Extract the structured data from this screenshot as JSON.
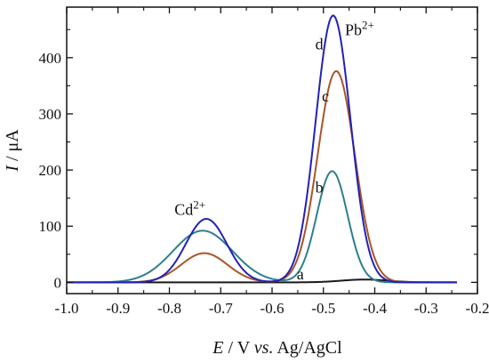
{
  "chart_data": {
    "type": "line",
    "xlabel": {
      "italic": "E",
      "plain": " / V ",
      "italic2": "vs.",
      "plain2": " Ag/AgCl"
    },
    "ylabel": {
      "italic": "I",
      "plain": " / μA"
    },
    "xlim": [
      -1.0,
      -0.2
    ],
    "ylim": [
      -20,
      490
    ],
    "x_ticks": [
      -1.0,
      -0.9,
      -0.8,
      -0.7,
      -0.6,
      -0.5,
      -0.4,
      -0.3,
      -0.2
    ],
    "x_tick_labels": [
      "-1.0",
      "-0.9",
      "-0.8",
      "-0.7",
      "-0.6",
      "-0.5",
      "-0.4",
      "-0.3",
      "-0.2"
    ],
    "y_ticks": [
      0,
      100,
      200,
      300,
      400
    ],
    "y_tick_labels": [
      "0",
      "100",
      "200",
      "300",
      "400"
    ],
    "grid": false,
    "series": [
      {
        "name": "a",
        "color": "#1a1a1a",
        "peaks": [
          {
            "x": -0.42,
            "height": 5,
            "width": 0.045
          }
        ],
        "label_pos": [
          -0.545,
          5
        ]
      },
      {
        "name": "b",
        "color": "#2e7f8e",
        "peaks": [
          {
            "x": -0.735,
            "height": 92,
            "width": 0.058
          },
          {
            "x": -0.483,
            "height": 198,
            "width": 0.03
          }
        ],
        "label_pos": [
          -0.508,
          160
        ]
      },
      {
        "name": "c",
        "color": "#a8552a",
        "peaks": [
          {
            "x": -0.732,
            "height": 52,
            "width": 0.045
          },
          {
            "x": -0.475,
            "height": 376,
            "width": 0.036
          }
        ],
        "label_pos": [
          -0.496,
          322
        ]
      },
      {
        "name": "d",
        "color": "#2222b8",
        "peaks": [
          {
            "x": -0.728,
            "height": 113,
            "width": 0.04
          },
          {
            "x": -0.481,
            "height": 475,
            "width": 0.034
          }
        ],
        "label_pos": [
          -0.508,
          415
        ]
      }
    ],
    "annotations": [
      {
        "name": "cd-annotation",
        "base": "Cd",
        "sup": "2+",
        "pos": [
          -0.79,
          120
        ]
      },
      {
        "name": "pb-annotation",
        "base": "Pb",
        "sup": "2+",
        "pos": [
          -0.458,
          440
        ]
      }
    ]
  }
}
